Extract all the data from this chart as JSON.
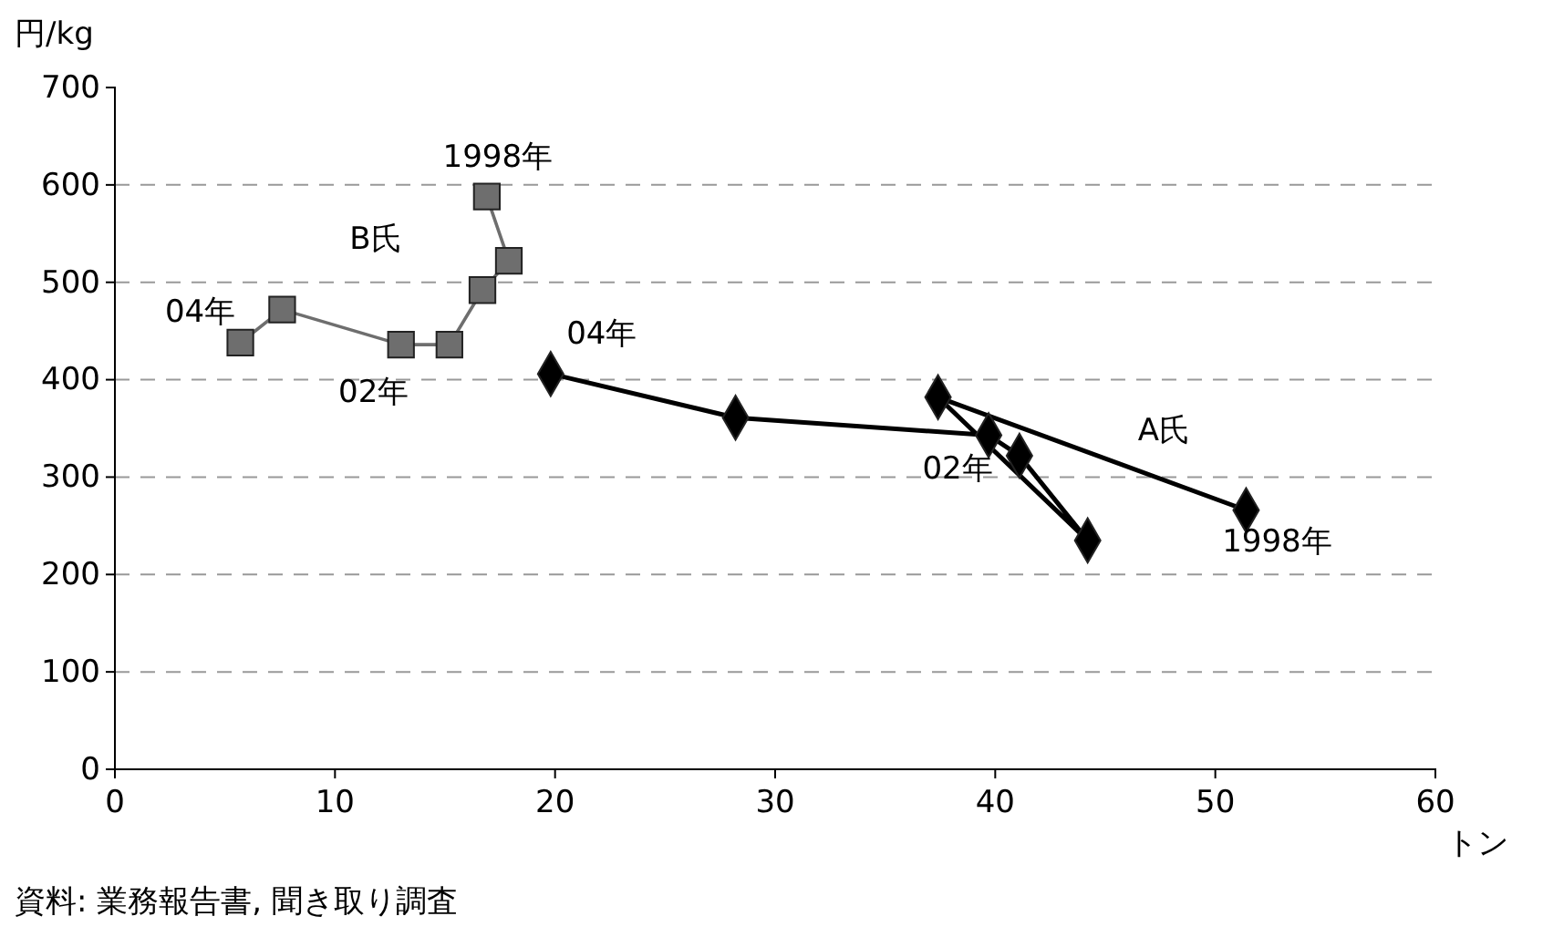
{
  "chart_data": {
    "type": "line",
    "ylabel": "円/kg",
    "xlabel": "トン",
    "xlim": [
      0,
      60
    ],
    "xticks": [
      0,
      10,
      20,
      30,
      40,
      50,
      60
    ],
    "ylim": [
      0,
      700
    ],
    "yticks": [
      0,
      100,
      200,
      300,
      400,
      500,
      600,
      700
    ],
    "grid": "y",
    "series": [
      {
        "name": "B氏",
        "color": "#6e6e6e",
        "marker": "square",
        "x": [
          16.9,
          17.9,
          16.7,
          15.2,
          13.0,
          7.6,
          5.7
        ],
        "values": [
          588,
          522,
          492,
          436,
          436,
          472,
          438
        ]
      },
      {
        "name": "A氏",
        "color": "#000000",
        "marker": "diamond",
        "x": [
          51.4,
          37.4,
          44.2,
          41.1,
          39.7,
          28.2,
          19.8
        ],
        "values": [
          266,
          382,
          235,
          322,
          343,
          361,
          406
        ]
      }
    ],
    "annotations": [
      {
        "text": "1998年",
        "x": 16.9,
        "y": 588
      },
      {
        "text": "04年",
        "x": 5.7,
        "y": 438
      },
      {
        "text": "02年",
        "x": 13.0,
        "y": 436
      },
      {
        "text": "04年",
        "x": 19.8,
        "y": 406
      },
      {
        "text": "02年",
        "x": 39.7,
        "y": 343
      },
      {
        "text": "1998年",
        "x": 51.4,
        "y": 266
      },
      "資料: 業務報告書, 聞き取り調査"
    ]
  }
}
